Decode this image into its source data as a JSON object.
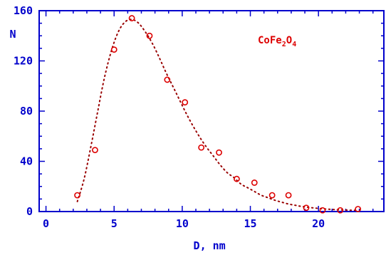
{
  "chart_data": {
    "type": "scatter",
    "xlabel": "D, nm",
    "ylabel": "N",
    "xlim": [
      -0.5,
      24.8
    ],
    "ylim": [
      0,
      160
    ],
    "xticks": [
      0,
      5,
      10,
      15,
      20
    ],
    "xtick_labels": [
      "0",
      "5",
      "10",
      "15",
      "20"
    ],
    "yticks": [
      0,
      40,
      80,
      120,
      160
    ],
    "ytick_labels": [
      "0",
      "40",
      "80",
      "120",
      "160"
    ],
    "grid": false,
    "annotation": {
      "base": "CoFe",
      "sub1": "2",
      "mid": "O",
      "sub2": "4"
    },
    "series": [
      {
        "kind": "points",
        "marker": "open-circle",
        "x": [
          2.3,
          3.6,
          5.0,
          6.3,
          7.6,
          8.9,
          10.2,
          11.4,
          12.7,
          14.0,
          15.3,
          16.6,
          17.8,
          19.1,
          20.3,
          21.6,
          22.9
        ],
        "y": [
          13,
          49,
          129,
          154,
          140,
          105,
          87,
          51,
          47,
          26,
          23,
          13,
          13,
          3,
          1,
          1,
          2
        ]
      },
      {
        "kind": "fit-curve",
        "style": "dotted",
        "x": [
          2.3,
          2.8,
          3.3,
          3.8,
          4.3,
          4.8,
          5.3,
          5.8,
          6.3,
          6.8,
          7.3,
          7.8,
          8.3,
          8.8,
          9.3,
          9.8,
          10.3,
          10.8,
          11.3,
          11.8,
          12.3,
          12.8,
          13.3,
          13.8,
          14.3,
          14.8,
          15.3,
          15.8,
          16.3,
          16.8,
          17.3,
          17.8,
          18.3,
          18.8,
          19.3,
          19.8,
          20.3,
          20.8,
          21.3,
          21.8,
          22.3,
          22.8
        ],
        "y": [
          8,
          26,
          52,
          80,
          107,
          128,
          143,
          151,
          153,
          150,
          143,
          134,
          123,
          111,
          100,
          89,
          78,
          68,
          59,
          51,
          44,
          37,
          31,
          27,
          22,
          19,
          16,
          13,
          11,
          9,
          7.5,
          6,
          5,
          4,
          3.3,
          2.7,
          2.2,
          1.8,
          1.5,
          1.3,
          1.1,
          1
        ]
      }
    ]
  },
  "colors": {
    "axis": "#0000cc",
    "points": "#dd0000",
    "curve": "#990000",
    "annotation": "#dd0000"
  }
}
